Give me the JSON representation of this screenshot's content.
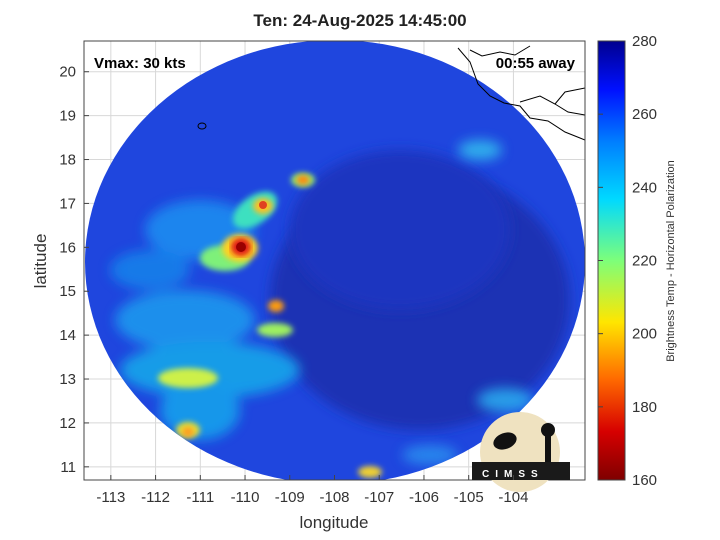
{
  "title": "Ten: 24-Aug-2025 14:45:00",
  "overlay": {
    "vmax": "Vmax: 30 kts",
    "away": "00:55 away"
  },
  "axes": {
    "xlabel": "longitude",
    "ylabel": "latitude",
    "x_ticks": [
      "-113",
      "-112",
      "-111",
      "-110",
      "-109",
      "-108",
      "-107",
      "-106",
      "-105",
      "-104"
    ],
    "y_ticks": [
      "11",
      "12",
      "13",
      "14",
      "15",
      "16",
      "17",
      "18",
      "19",
      "20"
    ],
    "xlim": [
      -113.6,
      -102.4
    ],
    "ylim": [
      10.7,
      20.7
    ]
  },
  "colorbar": {
    "label": "Brightness Temp - Horizontal Polarization",
    "ticks": [
      "280",
      "260",
      "240",
      "220",
      "200",
      "180",
      "160"
    ],
    "range": [
      160,
      280
    ],
    "colormap": "jet"
  },
  "logo": {
    "text": "CIMSS"
  },
  "colors": {
    "background_field": "#1e3fd6",
    "cold_core": "#1a2fb0",
    "warm_band": "#f2e41a",
    "hot_spot": "#c81010"
  }
}
